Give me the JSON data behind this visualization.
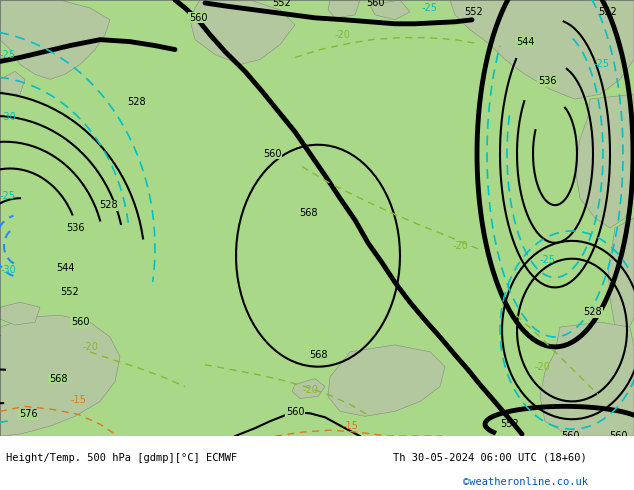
{
  "title_left": "Height/Temp. 500 hPa [gdmp][°C] ECMWF",
  "title_right": "Th 30-05-2024 06:00 UTC (18+60)",
  "credit": "©weatheronline.co.uk",
  "bg_green": "#a8d888",
  "land_gray": "#b8c8a8",
  "caption_bg": "#ffffff",
  "figsize": [
    6.34,
    4.9
  ],
  "dpi": 100
}
